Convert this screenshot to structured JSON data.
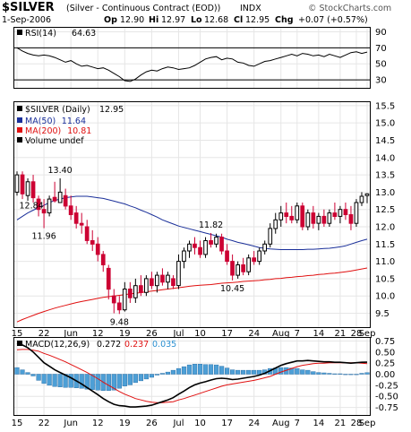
{
  "chart_data": {
    "type": "candlestick",
    "header": {
      "symbol": "$SILVER",
      "description": "(Silver - Continuous Contract (EOD))",
      "exchange": "INDX",
      "date": "1-Sep-2006",
      "open_label": "Op",
      "open": "12.90",
      "high_label": "Hi",
      "high": "12.97",
      "low_label": "Lo",
      "low": "12.68",
      "close_label": "Cl",
      "close": "12.95",
      "change_label": "Chg",
      "change": "+0.07 (+0.57%)",
      "copyright": "© StockCharts.com"
    },
    "colors": {
      "up": "#000000",
      "down": "#cc0033",
      "ma50": "#1a2f99",
      "ma200": "#e01010",
      "volume": "#000000",
      "rsi": "#000000",
      "macd": "#000000",
      "signal": "#e01010",
      "histogram": "#4d9fd6",
      "histogram_edge": "#2266a0"
    },
    "rsi": {
      "label": "RSI(14)",
      "value": "64.63",
      "ylim": [
        20,
        95
      ],
      "ticks": [
        "90",
        "70",
        "50",
        "30"
      ],
      "tick_values": [
        90,
        70,
        50,
        30
      ],
      "ref_lines": [
        70,
        30
      ],
      "values": [
        70,
        66,
        63,
        61,
        60,
        61,
        60,
        58,
        55,
        52,
        54,
        50,
        47,
        48,
        46,
        44,
        45,
        42,
        38,
        34,
        29,
        28,
        31,
        36,
        40,
        42,
        41,
        44,
        46,
        45,
        43,
        44,
        45,
        48,
        52,
        56,
        58,
        59,
        55,
        57,
        56,
        52,
        51,
        48,
        47,
        50,
        53,
        54,
        56,
        58,
        60,
        62,
        60,
        63,
        62,
        60,
        61,
        59,
        62,
        60,
        58,
        61,
        64,
        65,
        63,
        64.63
      ]
    },
    "price": {
      "label": "$SILVER (Daily)",
      "last": "12.95",
      "ylim": [
        9.1,
        15.6
      ],
      "ticks": [
        "15.5",
        "15.0",
        "14.5",
        "14.0",
        "13.5",
        "13.0",
        "12.5",
        "12.0",
        "11.5",
        "11.0",
        "10.5",
        "10.0",
        "9.5"
      ],
      "tick_values": [
        15.5,
        15.0,
        14.5,
        14.0,
        13.5,
        13.0,
        12.5,
        12.0,
        11.5,
        11.0,
        10.5,
        10.0,
        9.5
      ],
      "legend": [
        {
          "label": "MA(50)",
          "value": "11.64",
          "color": "#1a2f99"
        },
        {
          "label": "MA(200)",
          "value": "10.81",
          "color": "#e01010"
        },
        {
          "label": "Volume undef",
          "value": "",
          "color": "#000000"
        }
      ],
      "candles": [
        [
          13.0,
          13.6,
          12.9,
          13.5
        ],
        [
          13.5,
          13.6,
          12.8,
          12.95
        ],
        [
          12.9,
          13.4,
          12.75,
          13.3
        ],
        [
          13.3,
          13.5,
          12.7,
          12.84
        ],
        [
          12.8,
          12.9,
          12.3,
          12.5
        ],
        [
          12.5,
          12.8,
          11.96,
          12.4
        ],
        [
          12.4,
          12.9,
          12.3,
          12.8
        ],
        [
          12.85,
          13.3,
          12.7,
          12.75
        ],
        [
          12.7,
          13.4,
          12.7,
          13.0
        ],
        [
          12.9,
          13.1,
          12.5,
          12.6
        ],
        [
          12.6,
          12.9,
          12.2,
          12.35
        ],
        [
          12.4,
          12.6,
          11.95,
          12.1
        ],
        [
          12.1,
          12.4,
          11.8,
          12.05
        ],
        [
          12.0,
          12.2,
          11.5,
          11.6
        ],
        [
          11.6,
          11.9,
          11.3,
          11.5
        ],
        [
          11.5,
          11.7,
          11.0,
          11.2
        ],
        [
          11.2,
          11.3,
          10.7,
          10.9
        ],
        [
          10.8,
          10.9,
          9.9,
          10.2
        ],
        [
          10.0,
          10.2,
          9.5,
          9.8
        ],
        [
          9.8,
          10.0,
          9.48,
          9.6
        ],
        [
          9.6,
          10.4,
          9.55,
          10.2
        ],
        [
          10.2,
          10.4,
          9.8,
          9.95
        ],
        [
          9.95,
          10.5,
          9.8,
          10.3
        ],
        [
          10.3,
          10.6,
          10.0,
          10.1
        ],
        [
          10.1,
          10.6,
          10.0,
          10.5
        ],
        [
          10.5,
          10.7,
          10.2,
          10.3
        ],
        [
          10.3,
          10.7,
          10.1,
          10.6
        ],
        [
          10.6,
          10.8,
          10.3,
          10.4
        ],
        [
          10.4,
          10.7,
          10.2,
          10.6
        ],
        [
          10.5,
          10.6,
          10.2,
          10.3
        ],
        [
          10.3,
          11.2,
          10.2,
          11.0
        ],
        [
          11.0,
          11.4,
          10.8,
          11.3
        ],
        [
          11.3,
          11.6,
          11.1,
          11.5
        ],
        [
          11.5,
          11.7,
          11.2,
          11.4
        ],
        [
          11.4,
          11.6,
          11.1,
          11.2
        ],
        [
          11.2,
          11.7,
          11.1,
          11.6
        ],
        [
          11.6,
          11.82,
          11.4,
          11.5
        ],
        [
          11.5,
          11.8,
          11.4,
          11.7
        ],
        [
          11.7,
          11.8,
          11.2,
          11.3
        ],
        [
          11.3,
          11.5,
          10.9,
          11.0
        ],
        [
          11.0,
          11.2,
          10.45,
          10.6
        ],
        [
          10.6,
          11.0,
          10.5,
          10.9
        ],
        [
          10.9,
          11.1,
          10.6,
          10.7
        ],
        [
          10.7,
          11.2,
          10.6,
          11.1
        ],
        [
          11.1,
          11.3,
          10.9,
          11.0
        ],
        [
          11.0,
          11.4,
          10.9,
          11.3
        ],
        [
          11.3,
          11.6,
          11.2,
          11.5
        ],
        [
          11.5,
          12.1,
          11.4,
          11.95
        ],
        [
          11.95,
          12.4,
          11.8,
          12.2
        ],
        [
          12.2,
          12.6,
          12.0,
          12.4
        ],
        [
          12.4,
          12.7,
          12.1,
          12.3
        ],
        [
          12.3,
          12.6,
          12.1,
          12.2
        ],
        [
          12.2,
          12.7,
          12.1,
          12.6
        ],
        [
          12.6,
          12.7,
          11.9,
          12.0
        ],
        [
          12.0,
          12.5,
          11.9,
          12.4
        ],
        [
          12.4,
          12.6,
          11.95,
          12.1
        ],
        [
          12.1,
          12.4,
          11.9,
          12.3
        ],
        [
          12.3,
          12.5,
          12.0,
          12.1
        ],
        [
          12.1,
          12.5,
          12.0,
          12.4
        ],
        [
          12.4,
          12.7,
          12.2,
          12.3
        ],
        [
          12.3,
          12.6,
          12.1,
          12.5
        ],
        [
          12.5,
          12.7,
          12.2,
          12.35
        ],
        [
          12.35,
          12.6,
          11.9,
          12.1
        ],
        [
          12.1,
          12.8,
          12.0,
          12.7
        ],
        [
          12.7,
          13.0,
          12.6,
          12.88
        ],
        [
          12.9,
          12.97,
          12.68,
          12.95
        ]
      ],
      "ma50": [
        12.2,
        12.3,
        12.4,
        12.48,
        12.55,
        12.62,
        12.7,
        12.76,
        12.8,
        12.84,
        12.86,
        12.88,
        12.88,
        12.88,
        12.86,
        12.84,
        12.82,
        12.78,
        12.74,
        12.7,
        12.66,
        12.6,
        12.55,
        12.48,
        12.42,
        12.35,
        12.28,
        12.2,
        12.14,
        12.08,
        12.02,
        11.98,
        11.94,
        11.9,
        11.86,
        11.82,
        11.78,
        11.74,
        11.7,
        11.64,
        11.6,
        11.55,
        11.52,
        11.48,
        11.44,
        11.4,
        11.38,
        11.36,
        11.35,
        11.34,
        11.34,
        11.34,
        11.34,
        11.34,
        11.35,
        11.35,
        11.36,
        11.37,
        11.38,
        11.4,
        11.42,
        11.45,
        11.5,
        11.55,
        11.6,
        11.64
      ],
      "ma200": [
        9.25,
        9.32,
        9.38,
        9.44,
        9.5,
        9.55,
        9.6,
        9.65,
        9.69,
        9.73,
        9.77,
        9.81,
        9.84,
        9.87,
        9.9,
        9.93,
        9.96,
        9.98,
        10.0,
        10.02,
        10.04,
        10.06,
        10.08,
        10.1,
        10.12,
        10.14,
        10.16,
        10.18,
        10.2,
        10.22,
        10.24,
        10.26,
        10.28,
        10.3,
        10.31,
        10.32,
        10.33,
        10.35,
        10.37,
        10.38,
        10.39,
        10.4,
        10.42,
        10.43,
        10.44,
        10.45,
        10.47,
        10.48,
        10.5,
        10.51,
        10.53,
        10.54,
        10.56,
        10.57,
        10.59,
        10.6,
        10.62,
        10.63,
        10.65,
        10.66,
        10.68,
        10.7,
        10.72,
        10.75,
        10.78,
        10.81
      ],
      "annotations": [
        {
          "text": "13.40",
          "i": 8,
          "v": 13.4,
          "pos": "above"
        },
        {
          "text": "12.84",
          "i": 3,
          "v": 12.84,
          "pos": "left"
        },
        {
          "text": "11.96",
          "i": 5,
          "v": 11.96,
          "pos": "below"
        },
        {
          "text": "11.82",
          "i": 36,
          "v": 11.82,
          "pos": "above"
        },
        {
          "text": "10.45",
          "i": 40,
          "v": 10.45,
          "pos": "below"
        },
        {
          "text": "9.48",
          "i": 19,
          "v": 9.48,
          "pos": "below"
        }
      ]
    },
    "macd": {
      "label": "MACD(12,26,9)",
      "macd": "0.272",
      "signal": "0.237",
      "histogram": "0.035",
      "ylim": [
        -0.92,
        0.82
      ],
      "ticks": [
        "0.75",
        "0.50",
        "0.25",
        "0.00",
        "-0.25",
        "-0.50",
        "-0.75"
      ],
      "tick_values": [
        0.75,
        0.5,
        0.25,
        0.0,
        -0.25,
        -0.5,
        -0.75
      ],
      "macd_values": [
        0.7,
        0.66,
        0.6,
        0.5,
        0.38,
        0.26,
        0.18,
        0.1,
        0.04,
        -0.02,
        -0.08,
        -0.15,
        -0.22,
        -0.3,
        -0.38,
        -0.46,
        -0.55,
        -0.62,
        -0.68,
        -0.71,
        -0.72,
        -0.74,
        -0.74,
        -0.73,
        -0.72,
        -0.7,
        -0.66,
        -0.62,
        -0.58,
        -0.53,
        -0.45,
        -0.38,
        -0.3,
        -0.24,
        -0.2,
        -0.17,
        -0.13,
        -0.1,
        -0.09,
        -0.1,
        -0.12,
        -0.11,
        -0.09,
        -0.07,
        -0.05,
        -0.02,
        0.02,
        0.08,
        0.14,
        0.2,
        0.24,
        0.27,
        0.3,
        0.3,
        0.31,
        0.3,
        0.29,
        0.28,
        0.28,
        0.27,
        0.27,
        0.26,
        0.25,
        0.26,
        0.27,
        0.272
      ],
      "signal_values": [
        0.55,
        0.56,
        0.56,
        0.54,
        0.52,
        0.47,
        0.43,
        0.38,
        0.33,
        0.28,
        0.22,
        0.16,
        0.1,
        0.04,
        -0.03,
        -0.1,
        -0.18,
        -0.25,
        -0.32,
        -0.39,
        -0.45,
        -0.5,
        -0.55,
        -0.58,
        -0.61,
        -0.63,
        -0.64,
        -0.64,
        -0.63,
        -0.62,
        -0.58,
        -0.55,
        -0.51,
        -0.47,
        -0.43,
        -0.39,
        -0.35,
        -0.31,
        -0.27,
        -0.24,
        -0.22,
        -0.2,
        -0.18,
        -0.16,
        -0.14,
        -0.11,
        -0.08,
        -0.05,
        0.0,
        0.05,
        0.09,
        0.13,
        0.17,
        0.2,
        0.22,
        0.24,
        0.25,
        0.25,
        0.26,
        0.26,
        0.26,
        0.26,
        0.26,
        0.26,
        0.25,
        0.237
      ]
    },
    "x_axis": {
      "labels": [
        {
          "text": "15",
          "i": 0
        },
        {
          "text": "22",
          "i": 5
        },
        {
          "text": "Jun",
          "i": 10
        },
        {
          "text": "12",
          "i": 15
        },
        {
          "text": "19",
          "i": 20
        },
        {
          "text": "26",
          "i": 25
        },
        {
          "text": "Jul",
          "i": 30
        },
        {
          "text": "10",
          "i": 34
        },
        {
          "text": "17",
          "i": 39
        },
        {
          "text": "24",
          "i": 44
        },
        {
          "text": "Aug",
          "i": 49
        },
        {
          "text": "7",
          "i": 52
        },
        {
          "text": "14",
          "i": 56
        },
        {
          "text": "21",
          "i": 60
        },
        {
          "text": "28",
          "i": 63
        },
        {
          "text": "Sep",
          "i": 65
        }
      ]
    }
  }
}
